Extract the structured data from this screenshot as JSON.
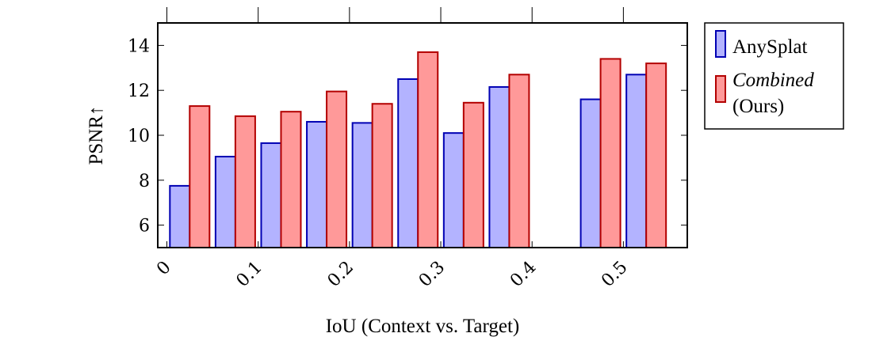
{
  "chart_data": {
    "type": "bar",
    "xlabel": "IoU (Context vs. Target)",
    "ylabel": "PSNR↑",
    "xlim": [
      -0.01,
      0.57
    ],
    "ylim": [
      5,
      15
    ],
    "xticks": [
      0,
      0.1,
      0.2,
      0.3,
      0.4,
      0.5
    ],
    "xtick_labels": [
      "0",
      "0.1",
      "0.2",
      "0.3",
      "0.4",
      "0.5"
    ],
    "yticks": [
      6,
      8,
      10,
      12,
      14
    ],
    "ytick_labels": [
      "6",
      "8",
      "10",
      "12",
      "14"
    ],
    "x": [
      0.025,
      0.075,
      0.125,
      0.175,
      0.225,
      0.275,
      0.325,
      0.375,
      0.425,
      0.475,
      0.525
    ],
    "series": [
      {
        "name": "AnySplat",
        "color_fill": "#b3b3ff",
        "color_stroke": "#0000b3",
        "values": [
          7.75,
          9.05,
          9.65,
          10.6,
          10.55,
          12.5,
          10.1,
          12.15,
          null,
          11.6,
          12.7
        ]
      },
      {
        "name": "Combined (Ours)",
        "name_italic": "Combined",
        "name_rest": "(Ours)",
        "color_fill": "#ff9999",
        "color_stroke": "#b30000",
        "values": [
          11.3,
          10.85,
          11.05,
          11.95,
          11.4,
          13.7,
          11.45,
          12.7,
          null,
          13.4,
          13.2
        ]
      }
    ],
    "legend_position": "outside-right-top",
    "grid": false
  }
}
